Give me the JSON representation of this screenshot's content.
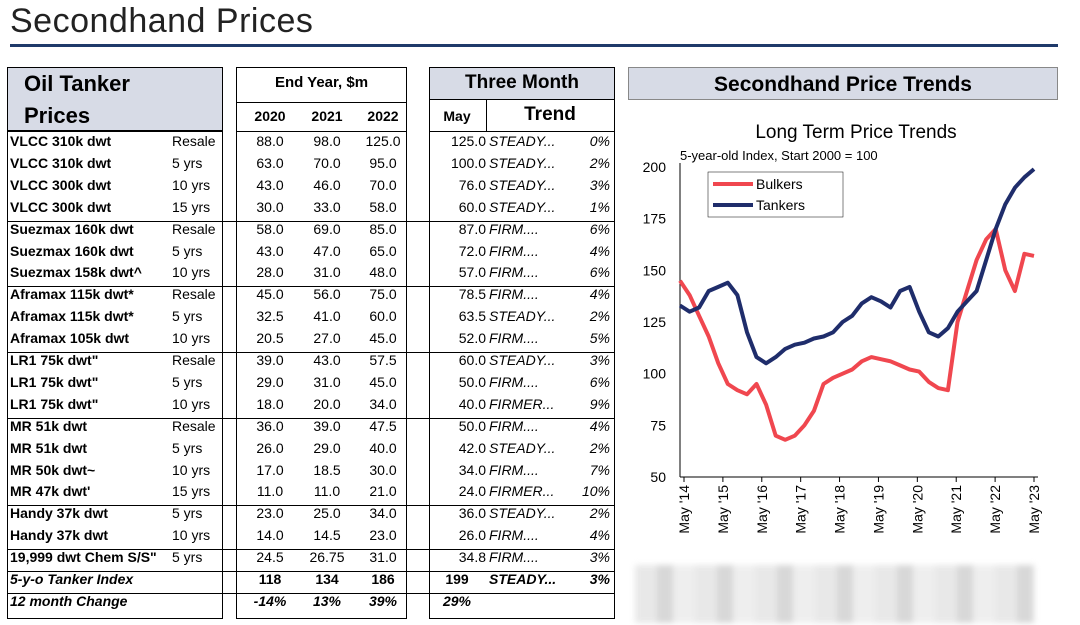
{
  "page": {
    "title": "Secondhand Prices"
  },
  "table": {
    "header": {
      "col1_line1": "Oil Tanker",
      "col1_line2": "Prices",
      "end_year": "End Year, $m",
      "years": [
        "2020",
        "2021",
        "2022"
      ],
      "three_month": "Three Month",
      "month": "May",
      "trend": "Trend"
    },
    "rows": [
      {
        "name": "VLCC 310k dwt",
        "age": "Resale",
        "y2020": "88.0",
        "y2021": "98.0",
        "y2022": "125.0",
        "may": "125.0",
        "trend": "STEADY...",
        "pct": "0%"
      },
      {
        "name": "VLCC 310k dwt",
        "age": "5 yrs",
        "y2020": "63.0",
        "y2021": "70.0",
        "y2022": "95.0",
        "may": "100.0",
        "trend": "STEADY...",
        "pct": "2%"
      },
      {
        "name": "VLCC 300k dwt",
        "age": "10 yrs",
        "y2020": "43.0",
        "y2021": "46.0",
        "y2022": "70.0",
        "may": "76.0",
        "trend": "STEADY...",
        "pct": "3%"
      },
      {
        "name": "VLCC 300k dwt",
        "age": "15 yrs",
        "y2020": "30.0",
        "y2021": "33.0",
        "y2022": "58.0",
        "may": "60.0",
        "trend": "STEADY...",
        "pct": "1%"
      },
      {
        "name": "Suezmax 160k dwt",
        "age": "Resale",
        "y2020": "58.0",
        "y2021": "69.0",
        "y2022": "85.0",
        "may": "87.0",
        "trend": "FIRM....",
        "pct": "6%"
      },
      {
        "name": "Suezmax 160k dwt",
        "age": "5 yrs",
        "y2020": "43.0",
        "y2021": "47.0",
        "y2022": "65.0",
        "may": "72.0",
        "trend": "FIRM....",
        "pct": "4%"
      },
      {
        "name": "Suezmax 158k dwt^",
        "age": "10 yrs",
        "y2020": "28.0",
        "y2021": "31.0",
        "y2022": "48.0",
        "may": "57.0",
        "trend": "FIRM....",
        "pct": "6%"
      },
      {
        "name": "Aframax 115k dwt*",
        "age": "Resale",
        "y2020": "45.0",
        "y2021": "56.0",
        "y2022": "75.0",
        "may": "78.5",
        "trend": "FIRM....",
        "pct": "4%"
      },
      {
        "name": "Aframax 115k dwt*",
        "age": "5 yrs",
        "y2020": "32.5",
        "y2021": "41.0",
        "y2022": "60.0",
        "may": "63.5",
        "trend": "STEADY...",
        "pct": "2%"
      },
      {
        "name": "Aframax 105k dwt",
        "age": "10 yrs",
        "y2020": "20.5",
        "y2021": "27.0",
        "y2022": "45.0",
        "may": "52.0",
        "trend": "FIRM....",
        "pct": "5%"
      },
      {
        "name": "LR1 75k dwt\"",
        "age": "Resale",
        "y2020": "39.0",
        "y2021": "43.0",
        "y2022": "57.5",
        "may": "60.0",
        "trend": "STEADY...",
        "pct": "3%"
      },
      {
        "name": "LR1 75k dwt\"",
        "age": "5 yrs",
        "y2020": "29.0",
        "y2021": "31.0",
        "y2022": "45.0",
        "may": "50.0",
        "trend": "FIRM....",
        "pct": "6%"
      },
      {
        "name": "LR1 75k dwt\"",
        "age": "10 yrs",
        "y2020": "18.0",
        "y2021": "20.0",
        "y2022": "34.0",
        "may": "40.0",
        "trend": "FIRMER...",
        "pct": "9%"
      },
      {
        "name": "MR 51k dwt",
        "age": "Resale",
        "y2020": "36.0",
        "y2021": "39.0",
        "y2022": "47.5",
        "may": "50.0",
        "trend": "FIRM....",
        "pct": "4%"
      },
      {
        "name": "MR 51k dwt",
        "age": "5 yrs",
        "y2020": "26.0",
        "y2021": "29.0",
        "y2022": "40.0",
        "may": "42.0",
        "trend": "STEADY...",
        "pct": "2%"
      },
      {
        "name": "MR 50k dwt~",
        "age": "10 yrs",
        "y2020": "17.0",
        "y2021": "18.5",
        "y2022": "30.0",
        "may": "34.0",
        "trend": "FIRM....",
        "pct": "7%"
      },
      {
        "name": "MR 47k dwt'",
        "age": "15 yrs",
        "y2020": "11.0",
        "y2021": "11.0",
        "y2022": "21.0",
        "may": "24.0",
        "trend": "FIRMER...",
        "pct": "10%"
      },
      {
        "name": "Handy 37k dwt",
        "age": "5 yrs",
        "y2020": "23.0",
        "y2021": "25.0",
        "y2022": "34.0",
        "may": "36.0",
        "trend": "STEADY...",
        "pct": "2%"
      },
      {
        "name": "Handy 37k dwt",
        "age": "10 yrs",
        "y2020": "14.0",
        "y2021": "14.5",
        "y2022": "23.0",
        "may": "26.0",
        "trend": "FIRM....",
        "pct": "4%"
      },
      {
        "name": "19,999 dwt Chem S/S\"",
        "age": "5 yrs",
        "y2020": "24.5",
        "y2021": "26.75",
        "y2022": "31.0",
        "may": "34.8",
        "trend": "FIRM....",
        "pct": "3%"
      }
    ],
    "index_row": {
      "label": "5-y-o Tanker Index",
      "y2020": "118",
      "y2021": "134",
      "y2022": "186",
      "may": "199",
      "trend": "STEADY...",
      "pct": "3%"
    },
    "change_row": {
      "label": "12 month Change",
      "y2020": "-14%",
      "y2021": "13%",
      "y2022": "39%",
      "may": "29%"
    }
  },
  "chart": {
    "header": "Secondhand Price Trends"
  },
  "chart_data": {
    "type": "line",
    "title": "Long Term Price Trends",
    "subtitle": "5-year-old Index, Start 2000 = 100",
    "ylim": [
      50,
      200
    ],
    "yticks": [
      "50",
      "75",
      "100",
      "125",
      "150",
      "175",
      "200"
    ],
    "xticks": [
      "May '14",
      "May '15",
      "May '16",
      "May '17",
      "May '18",
      "May '19",
      "May '20",
      "May '21",
      "May '22",
      "May '23"
    ],
    "legend_position": "top-left",
    "series": [
      {
        "name": "Bulkers",
        "color": "#f0474f",
        "values": [
          145,
          138,
          128,
          118,
          105,
          95,
          92,
          90,
          95,
          85,
          70,
          68,
          70,
          75,
          82,
          95,
          98,
          100,
          102,
          106,
          108,
          107,
          106,
          104,
          102,
          101,
          96,
          93,
          92,
          125,
          140,
          155,
          165,
          170,
          150,
          140,
          158,
          157
        ]
      },
      {
        "name": "Tankers",
        "color": "#1f2d6b",
        "values": [
          133,
          130,
          132,
          140,
          142,
          144,
          138,
          120,
          108,
          105,
          108,
          112,
          114,
          115,
          117,
          118,
          120,
          125,
          128,
          134,
          137,
          135,
          132,
          140,
          142,
          130,
          120,
          118,
          122,
          130,
          135,
          140,
          155,
          170,
          182,
          190,
          195,
          199
        ]
      }
    ]
  }
}
